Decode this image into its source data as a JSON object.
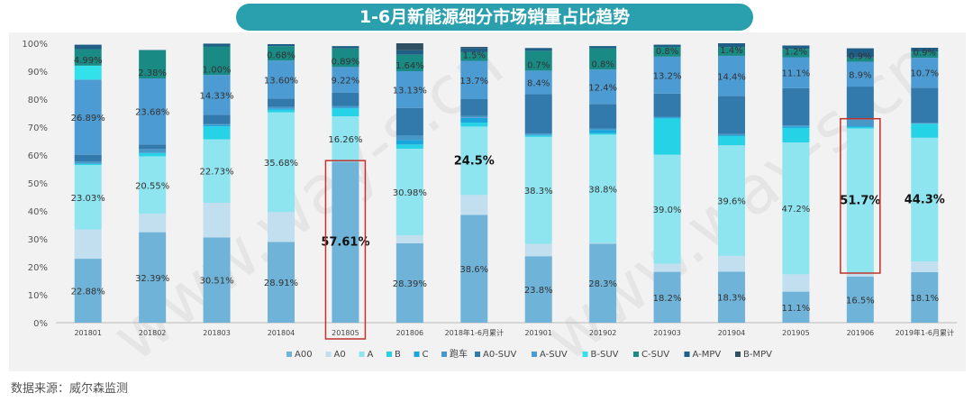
{
  "title": "1-6月新能源细分市场销量占比趋势",
  "source": "数据来源：威尔森监测",
  "watermark": "www.way-s.cn",
  "colors": {
    "title_bg": "#2a9fae",
    "A00": "#6fb3d9",
    "A0": "#c2dff0",
    "A": "#8ee4ef",
    "B": "#26d3e6",
    "C": "#1aa6dd",
    "跑车": "#4797c9",
    "A0-SUV": "#3279ac",
    "A-SUV": "#4d9bd3",
    "B-SUV": "#33e1ea",
    "C-SUV": "#1a8a85",
    "A-MPV": "#1f5f86",
    "B-MPV": "#2f4f63",
    "highlight": "#c0322c"
  },
  "chart_data": {
    "type": "bar",
    "stacked": true,
    "ylim": [
      0,
      100
    ],
    "yticks": [
      "0%",
      "10%",
      "20%",
      "30%",
      "40%",
      "50%",
      "60%",
      "70%",
      "80%",
      "90%",
      "100%"
    ],
    "categories": [
      "201801",
      "201802",
      "201803",
      "201804",
      "201805",
      "201806",
      "2018年1-6月累计",
      "201901",
      "201902",
      "201903",
      "201904",
      "201905",
      "201906",
      "2019年1-6月累计"
    ],
    "legend": [
      "A00",
      "A0",
      "A",
      "B",
      "C",
      "跑车",
      "A0-SUV",
      "A-SUV",
      "B-SUV",
      "C-SUV",
      "A-MPV",
      "B-MPV"
    ],
    "legend_position": "bottom",
    "series": [
      {
        "name": "A00",
        "values": [
          22.88,
          32.39,
          30.51,
          28.91,
          57.61,
          28.39,
          38.6,
          23.8,
          28.3,
          18.2,
          18.3,
          11.1,
          16.5,
          18.1
        ]
      },
      {
        "name": "A0",
        "values": [
          10.5,
          6.6,
          12.4,
          10.7,
          0,
          2.9,
          7.1,
          4.4,
          0.2,
          2.9,
          5.6,
          6.2,
          1.3,
          3.8
        ]
      },
      {
        "name": "A",
        "values": [
          23.03,
          20.55,
          22.73,
          35.68,
          16.26,
          30.98,
          24.5,
          38.3,
          38.8,
          39.0,
          39.6,
          47.2,
          51.7,
          44.3
        ]
      },
      {
        "name": "B",
        "values": [
          0.5,
          1.2,
          4.6,
          0.9,
          2.8,
          1.5,
          1.4,
          0.5,
          0.5,
          13.0,
          3.3,
          5.2,
          0.5,
          5.0
        ]
      },
      {
        "name": "C",
        "values": [
          0,
          0,
          0.5,
          0.5,
          0.3,
          1.6,
          1.7,
          0.3,
          1.2,
          0.3,
          0.3,
          0.5,
          0.3,
          0
        ]
      },
      {
        "name": "跑车",
        "values": [
          0.8,
          1.4,
          0.4,
          0.5,
          0.6,
          1.6,
          0.7,
          0.4,
          0.5,
          0.3,
          0.4,
          0.4,
          2.4,
          0.3
        ]
      },
      {
        "name": "A0-SUV",
        "values": [
          2.4,
          1.6,
          3.2,
          3.0,
          4.7,
          9.9,
          6.0,
          14.1,
          8.7,
          8.3,
          13.6,
          13.3,
          11.8,
          12.6
        ]
      },
      {
        "name": "A-SUV",
        "values": [
          26.89,
          23.68,
          14.33,
          13.6,
          9.22,
          13.13,
          13.7,
          8.4,
          12.4,
          13.2,
          14.4,
          11.1,
          8.9,
          10.7
        ]
      },
      {
        "name": "B-SUV",
        "values": [
          4.99,
          0,
          0,
          0,
          0,
          0,
          0,
          0,
          0,
          0,
          0,
          0,
          0,
          0
        ]
      },
      {
        "name": "C-SUV",
        "values": [
          5.9,
          10.1,
          10.2,
          5.2,
          6.7,
          5.9,
          3.1,
          7.1,
          7.6,
          3.5,
          3.1,
          3.0,
          1.5,
          2.3
        ]
      },
      {
        "name": "A-MPV",
        "values": [
          1.6,
          0.1,
          1.0,
          0.7,
          0.8,
          1.6,
          1.5,
          1.0,
          0.8,
          0.8,
          1.4,
          1.2,
          3.3,
          1.3
        ]
      },
      {
        "name": "B-MPV",
        "values": [
          0,
          0,
          0,
          0,
          0,
          2.5,
          0.4,
          0,
          0,
          0,
          0,
          0,
          0,
          0
        ]
      }
    ],
    "data_labels": [
      [
        "22.88%",
        "23.03%",
        "26.89%",
        "4.99%"
      ],
      [
        "32.39%",
        "20.55%",
        "23.68%",
        "2.38%"
      ],
      [
        "30.51%",
        "22.73%",
        "14.33%",
        "1.00%"
      ],
      [
        "28.91%",
        "35.68%",
        "13.60%",
        "0.68%"
      ],
      [
        "57.61%",
        "16.26%",
        "9.22%",
        "0.89%"
      ],
      [
        "28.39%",
        "30.98%",
        "13.13%",
        "1.64%"
      ],
      [
        "38.6%",
        "24.5%",
        "13.7%",
        "1.5%"
      ],
      [
        "23.8%",
        "38.3%",
        "8.4%",
        "0.7%"
      ],
      [
        "28.3%",
        "38.8%",
        "12.4%",
        "0.8%"
      ],
      [
        "18.2%",
        "39.0%",
        "13.2%",
        "0.8%"
      ],
      [
        "18.3%",
        "39.6%",
        "14.4%",
        "1.4%"
      ],
      [
        "11.1%",
        "47.2%",
        "11.1%",
        "1.2%"
      ],
      [
        "16.5%",
        "51.7%",
        "8.9%",
        "0.9%"
      ],
      [
        "18.1%",
        "44.3%",
        "10.7%",
        "0.9%"
      ]
    ],
    "highlights": [
      "57.61%",
      "51.7%"
    ]
  }
}
